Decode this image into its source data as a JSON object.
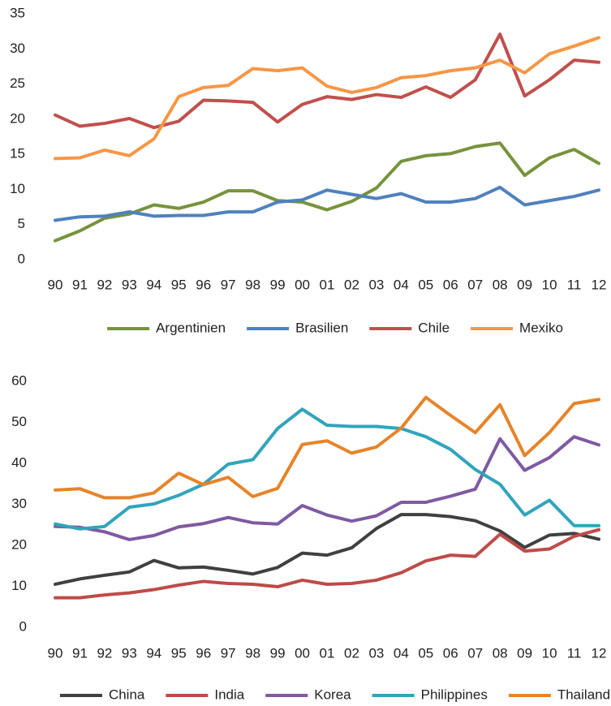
{
  "chart_data": [
    {
      "type": "line",
      "categories": [
        "90",
        "91",
        "92",
        "93",
        "94",
        "95",
        "96",
        "97",
        "98",
        "99",
        "00",
        "01",
        "02",
        "03",
        "04",
        "05",
        "06",
        "07",
        "08",
        "09",
        "10",
        "11",
        "12"
      ],
      "ylim": [
        0,
        35
      ],
      "yticks": [
        0,
        5,
        10,
        15,
        20,
        25,
        30,
        35
      ],
      "grid": false,
      "series": [
        {
          "name": "Argentinien",
          "color": "#77933c",
          "values": [
            2.7,
            4.1,
            5.9,
            6.5,
            7.8,
            7.3,
            8.2,
            9.8,
            9.8,
            8.4,
            8.2,
            7.1,
            8.3,
            10.2,
            14,
            14.8,
            15.1,
            16.1,
            16.6,
            12,
            14.5,
            15.7,
            13.7
          ]
        },
        {
          "name": "Brasilien",
          "color": "#4f81bd",
          "values": [
            5.6,
            6.1,
            6.2,
            6.8,
            6.2,
            6.3,
            6.3,
            6.8,
            6.8,
            8.2,
            8.5,
            9.9,
            9.3,
            8.7,
            9.4,
            8.2,
            8.2,
            8.7,
            10.3,
            7.8,
            8.4,
            9,
            9.9
          ]
        },
        {
          "name": "Chile",
          "color": "#c0504d",
          "values": [
            20.6,
            19,
            19.4,
            20.1,
            18.8,
            19.7,
            22.7,
            22.6,
            22.4,
            19.6,
            22.1,
            23.2,
            22.8,
            23.5,
            23.1,
            24.6,
            23.1,
            25.6,
            32.1,
            23.3,
            25.6,
            28.4,
            28.1
          ]
        },
        {
          "name": "Mexiko",
          "color": "#f79646",
          "values": [
            14.4,
            14.5,
            15.6,
            14.8,
            17.2,
            23.2,
            24.5,
            24.8,
            27.2,
            26.9,
            27.3,
            24.7,
            23.8,
            24.5,
            25.9,
            26.2,
            26.9,
            27.3,
            28.4,
            26.6,
            29.3,
            30.4,
            31.6
          ]
        }
      ]
    },
    {
      "type": "line",
      "categories": [
        "90",
        "91",
        "92",
        "93",
        "94",
        "95",
        "96",
        "97",
        "98",
        "99",
        "00",
        "01",
        "02",
        "03",
        "04",
        "05",
        "06",
        "07",
        "08",
        "09",
        "10",
        "11",
        "12"
      ],
      "ylim": [
        0,
        60
      ],
      "yticks": [
        0,
        10,
        20,
        30,
        40,
        50,
        60
      ],
      "grid": false,
      "series": [
        {
          "name": "China",
          "color": "#404040",
          "values": [
            10.5,
            11.8,
            12.7,
            13.5,
            16.3,
            14.5,
            14.7,
            13.9,
            13,
            14.6,
            18.1,
            17.6,
            19.4,
            24.1,
            27.5,
            27.5,
            27,
            26,
            23.5,
            19.5,
            22.5,
            22.9,
            21.5
          ]
        },
        {
          "name": "India",
          "color": "#be4b48",
          "values": [
            7.2,
            7.2,
            7.9,
            8.4,
            9.2,
            10.3,
            11.2,
            10.7,
            10.5,
            9.9,
            11.5,
            10.5,
            10.7,
            11.5,
            13.3,
            16.2,
            17.6,
            17.3,
            22.7,
            18.6,
            19.1,
            22.2,
            23.8
          ]
        },
        {
          "name": "Korea",
          "color": "#7f5aa2",
          "values": [
            24.6,
            24.4,
            23.3,
            21.4,
            22.4,
            24.5,
            25.3,
            26.8,
            25.5,
            25.2,
            29.7,
            27.4,
            25.9,
            27.2,
            30.5,
            30.5,
            32,
            33.7,
            46,
            38.3,
            41.4,
            46.5,
            44.5
          ]
        },
        {
          "name": "Philippines",
          "color": "#31a4bc",
          "values": [
            25.2,
            24,
            24.6,
            29.3,
            30.1,
            32.2,
            34.9,
            39.8,
            40.9,
            48.5,
            53.2,
            49.3,
            49,
            49,
            48.5,
            46.5,
            43.4,
            38.5,
            34.9,
            27.4,
            31,
            24.8,
            24.8
          ]
        },
        {
          "name": "Thailand",
          "color": "#e6842a",
          "values": [
            33.5,
            33.8,
            31.6,
            31.6,
            32.8,
            37.6,
            34.8,
            36.6,
            31.9,
            33.9,
            44.6,
            45.5,
            42.5,
            44,
            48.6,
            56.1,
            51.7,
            47.5,
            54.3,
            41.9,
            47.5,
            54.6,
            55.6
          ]
        }
      ]
    }
  ]
}
